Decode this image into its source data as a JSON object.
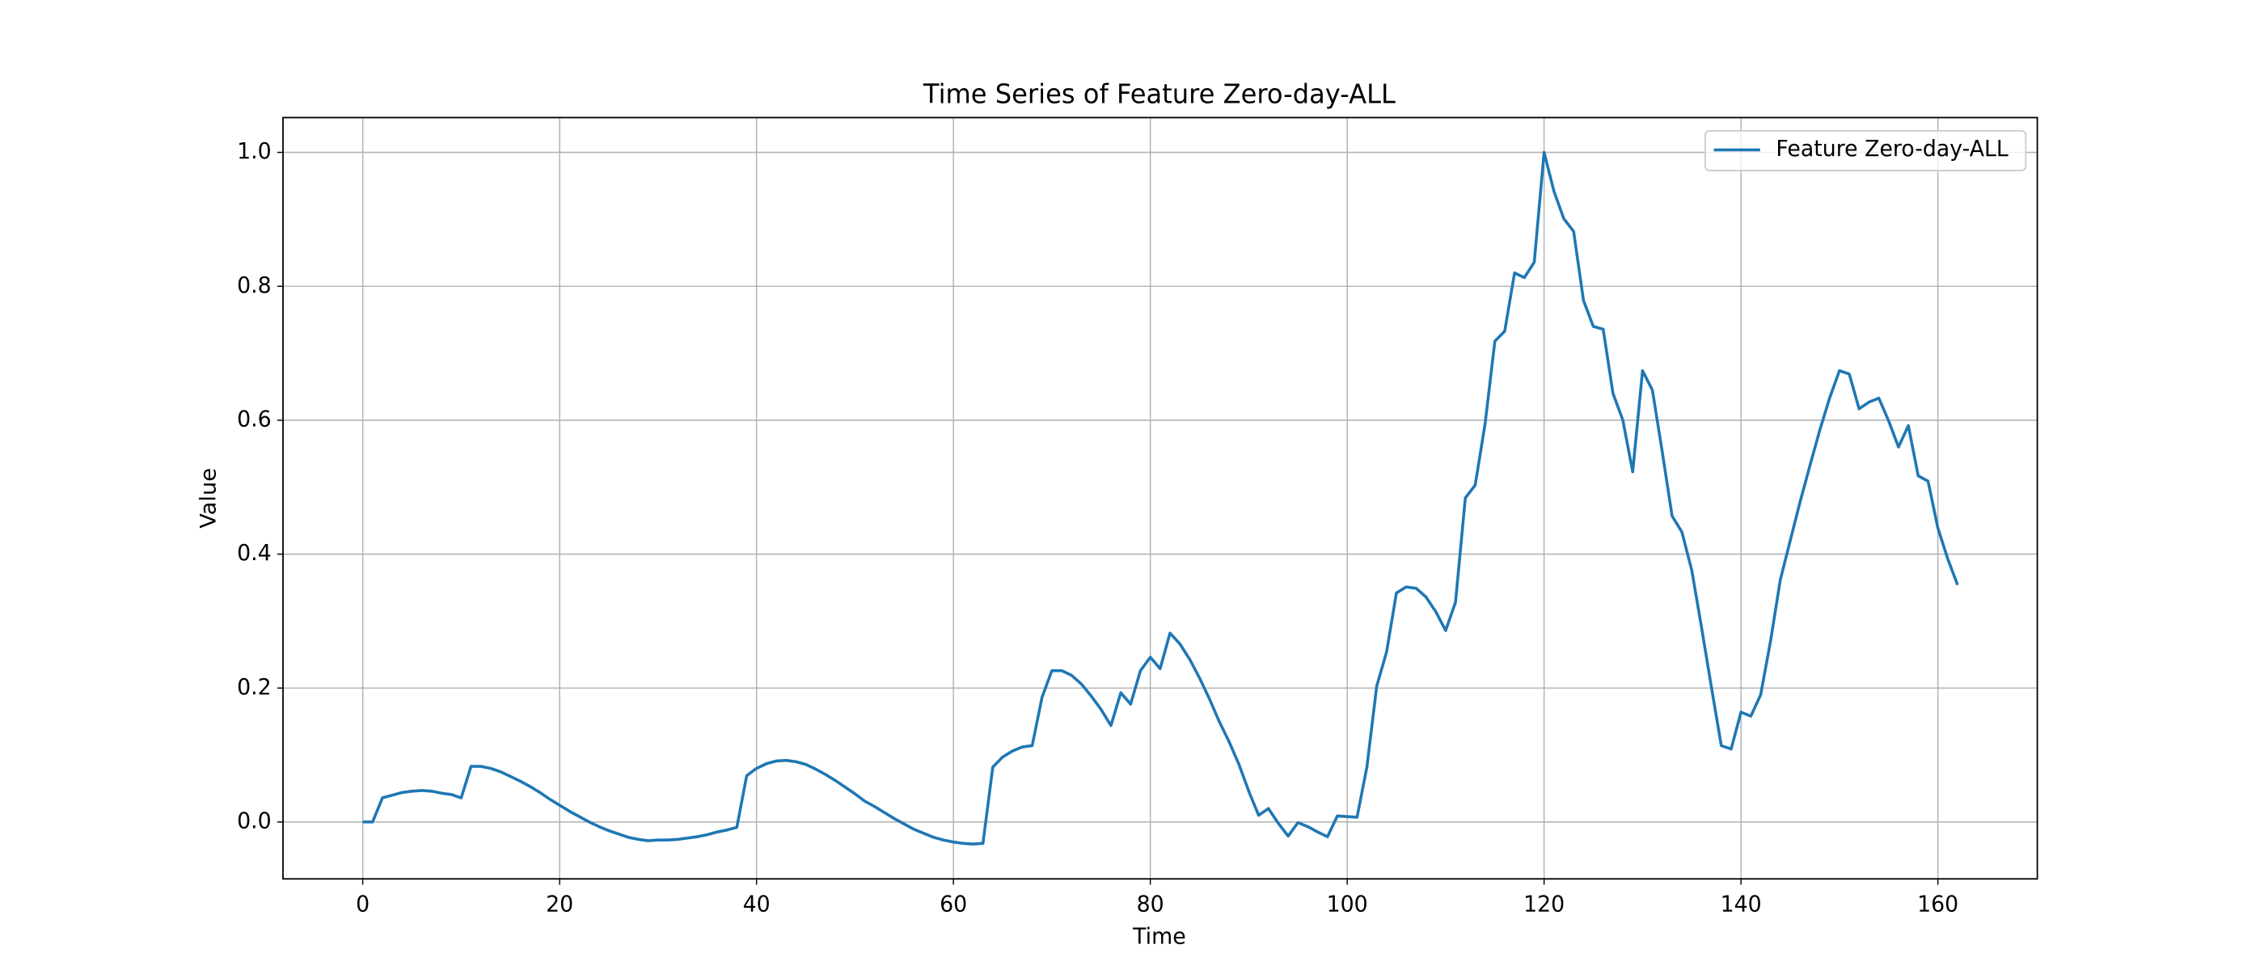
{
  "chart_data": {
    "type": "line",
    "title": "Time Series of Feature Zero-day-ALL",
    "x_label": "Time",
    "y_label": "Value",
    "x": [
      0,
      1,
      2,
      3,
      4,
      5,
      6,
      7,
      8,
      9,
      10,
      11,
      12,
      13,
      14,
      15,
      16,
      17,
      18,
      19,
      20,
      21,
      22,
      23,
      24,
      25,
      26,
      27,
      28,
      29,
      30,
      31,
      32,
      33,
      34,
      35,
      36,
      37,
      38,
      39,
      40,
      41,
      42,
      43,
      44,
      45,
      46,
      47,
      48,
      49,
      50,
      51,
      52,
      53,
      54,
      55,
      56,
      57,
      58,
      59,
      60,
      61,
      62,
      63,
      64,
      65,
      66,
      67,
      68,
      69,
      70,
      71,
      72,
      73,
      74,
      75,
      76,
      77,
      78,
      79,
      80,
      81,
      82,
      83,
      84,
      85,
      86,
      87,
      88,
      89,
      90,
      91,
      92,
      93,
      94,
      95,
      96,
      97,
      98,
      99,
      100,
      101,
      102,
      103,
      104,
      105,
      106,
      107,
      108,
      109,
      110,
      111,
      112,
      113,
      114,
      115,
      116,
      117,
      118,
      119,
      120,
      121,
      122,
      123,
      124,
      125,
      126,
      127,
      128,
      129,
      130,
      131,
      132,
      133,
      134,
      135,
      136,
      137,
      138,
      139,
      140,
      141,
      142,
      143,
      144,
      145,
      146,
      147,
      148,
      149,
      150,
      151,
      152,
      153,
      154,
      155,
      156,
      157,
      158,
      159,
      160,
      161,
      162
    ],
    "series": [
      {
        "name": "Feature Zero-day-ALL",
        "color": "#1f77b4",
        "values": [
          0,
          0,
          0.036,
          0.04,
          0.044,
          0.046,
          0.047,
          0.046,
          0.043,
          0.041,
          0.036,
          0.083,
          0.083,
          0.08,
          0.075,
          0.068,
          0.061,
          0.053,
          0.044,
          0.034,
          0.025,
          0.016,
          0.008,
          0.0,
          -0.007,
          -0.013,
          -0.018,
          -0.023,
          -0.026,
          -0.028,
          -0.027,
          -0.027,
          -0.026,
          -0.024,
          -0.022,
          -0.019,
          -0.015,
          -0.012,
          -0.008,
          0.069,
          0.08,
          0.087,
          0.091,
          0.092,
          0.09,
          0.086,
          0.079,
          0.071,
          0.062,
          0.052,
          0.042,
          0.031,
          0.023,
          0.014,
          0.005,
          -0.003,
          -0.011,
          -0.017,
          -0.023,
          -0.027,
          -0.03,
          -0.032,
          -0.033,
          -0.032,
          0.082,
          0.097,
          0.106,
          0.112,
          0.114,
          0.186,
          0.226,
          0.226,
          0.219,
          0.206,
          0.188,
          0.168,
          0.144,
          0.193,
          0.176,
          0.226,
          0.246,
          0.229,
          0.282,
          0.266,
          0.243,
          0.215,
          0.184,
          0.15,
          0.12,
          0.086,
          0.046,
          0.01,
          0.02,
          -0.002,
          -0.021,
          -0.001,
          -0.007,
          -0.015,
          -0.022,
          0.009,
          0.008,
          0.007,
          0.082,
          0.203,
          0.254,
          0.342,
          0.351,
          0.349,
          0.336,
          0.314,
          0.286,
          0.328,
          0.484,
          0.503,
          0.594,
          0.718,
          0.733,
          0.82,
          0.813,
          0.836,
          1.0,
          0.942,
          0.901,
          0.882,
          0.779,
          0.74,
          0.736,
          0.64,
          0.6,
          0.523,
          0.674,
          0.645,
          0.553,
          0.457,
          0.433,
          0.376,
          0.29,
          0.201,
          0.114,
          0.109,
          0.164,
          0.158,
          0.19,
          0.27,
          0.362,
          0.42,
          0.478,
          0.532,
          0.585,
          0.633,
          0.674,
          0.669,
          0.617,
          0.627,
          0.633,
          0.599,
          0.56,
          0.592,
          0.517,
          0.509,
          0.439,
          0.393,
          0.354
        ]
      }
    ],
    "xlim": [
      -8.1,
      170.1
    ],
    "ylim": [
      -0.085,
      1.052
    ],
    "xticks": [
      0,
      20,
      40,
      60,
      80,
      100,
      120,
      140,
      160
    ],
    "yticks": [
      {
        "value": 0,
        "label": "0.0"
      },
      0.2,
      0.4,
      0.6,
      0.8,
      {
        "value": 1,
        "label": "1.0"
      }
    ],
    "grid": true,
    "legend": "upper right"
  }
}
